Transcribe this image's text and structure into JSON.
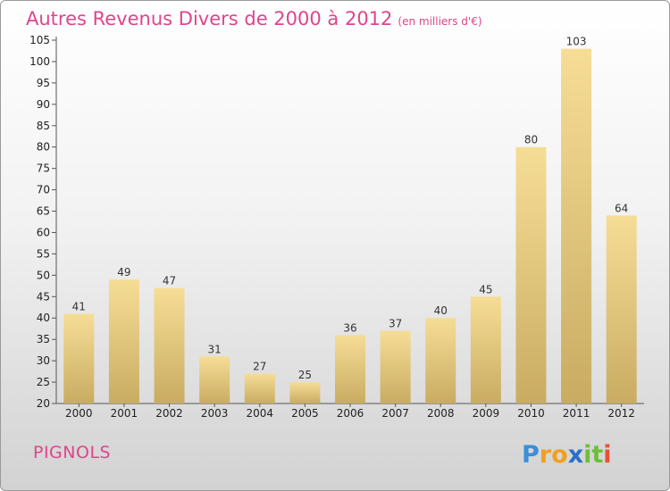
{
  "title": "Autres Revenus Divers de 2000 à 2012",
  "title_unit": "(en milliers d'€)",
  "commune": "PIGNOLS",
  "logo_text": "Proxiti",
  "colors": {
    "title": "#e0448c",
    "bar_light": "#f6dd96",
    "bar_dark": "#c9ac62",
    "axis": "#555555"
  },
  "chart_data": {
    "type": "bar",
    "title": "Autres Revenus Divers de 2000 à 2012",
    "subtitle": "(en milliers d'€)",
    "categories": [
      "2000",
      "2001",
      "2002",
      "2003",
      "2004",
      "2005",
      "2006",
      "2007",
      "2008",
      "2009",
      "2010",
      "2011",
      "2012"
    ],
    "values": [
      41,
      49,
      47,
      31,
      27,
      25,
      36,
      37,
      40,
      45,
      80,
      103,
      64
    ],
    "ylim": [
      20,
      105
    ],
    "yticks": [
      20,
      25,
      30,
      35,
      40,
      45,
      50,
      55,
      60,
      65,
      70,
      75,
      80,
      85,
      90,
      95,
      100,
      105
    ],
    "grid": false,
    "legend": "none"
  }
}
